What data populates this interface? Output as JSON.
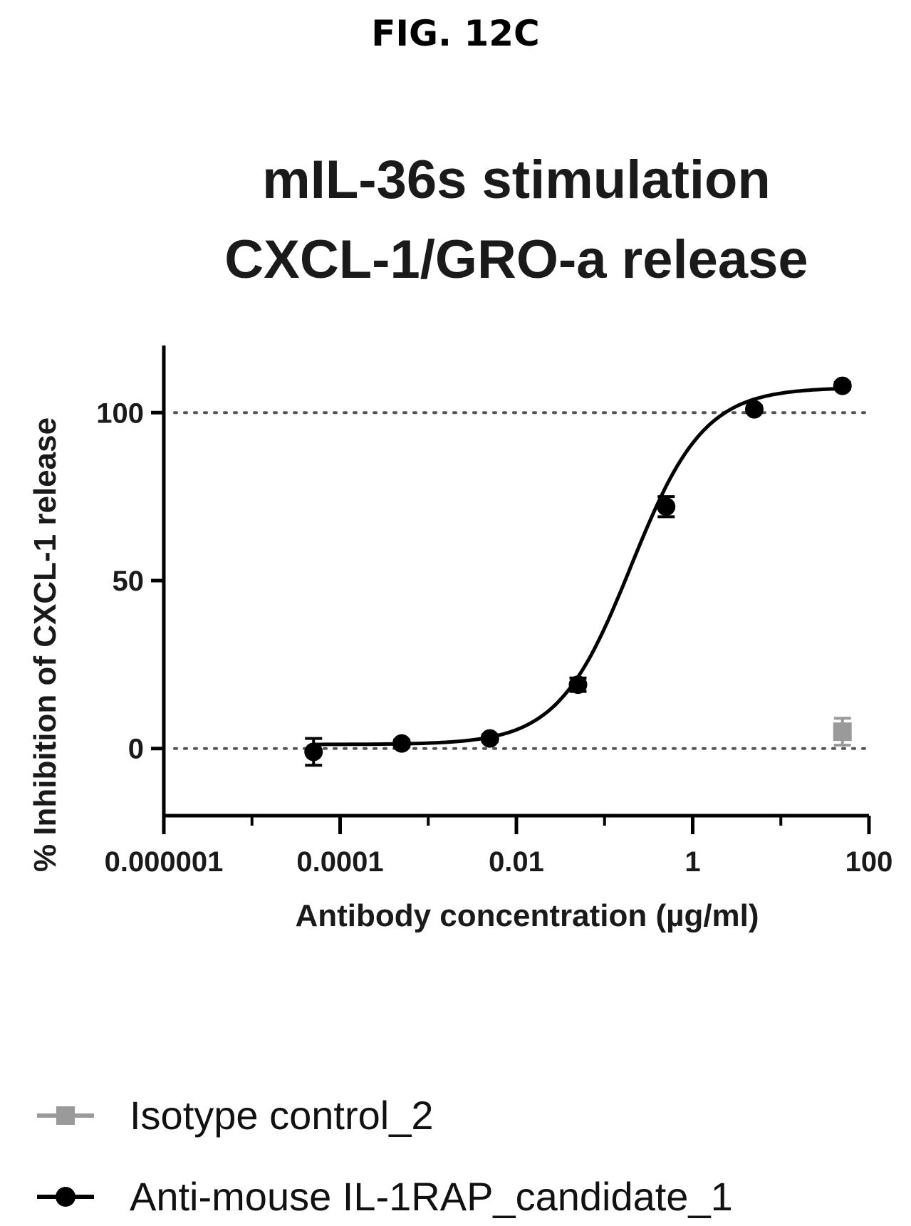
{
  "figure_label": "FIG. 12C",
  "chart_data": {
    "type": "scatter",
    "title": [
      "mIL-36s stimulation",
      "CXCL-1/GRO-a release"
    ],
    "xlabel": "Antibody concentration (µg/ml)",
    "ylabel": "% Inhibition of CXCL-1 release",
    "x_scale": "log",
    "xlim": [
      1e-06,
      100
    ],
    "ylim": [
      -20,
      120
    ],
    "x_ticks": [
      1e-06,
      0.0001,
      0.01,
      1,
      100
    ],
    "x_tick_labels": [
      "0.000001",
      "0.0001",
      "0.01",
      "1",
      "100"
    ],
    "y_ticks": [
      0,
      50,
      100
    ],
    "y_tick_labels": [
      "0",
      "50",
      "100"
    ],
    "reference_lines": [
      0,
      100
    ],
    "legend_position": "bottom",
    "series": [
      {
        "name": "Isotype control_2",
        "marker": "square",
        "color": "#9a9a9a",
        "fit": false,
        "points": [
          {
            "x": 50,
            "y": 5,
            "err": 4
          }
        ]
      },
      {
        "name": "Anti-mouse IL-1RAP_candidate_1",
        "marker": "circle",
        "color": "#000000",
        "fit": true,
        "points": [
          {
            "x": 5e-05,
            "y": -1,
            "err": 4
          },
          {
            "x": 0.0005,
            "y": 1.5,
            "err": 1
          },
          {
            "x": 0.005,
            "y": 3,
            "err": 1
          },
          {
            "x": 0.05,
            "y": 19,
            "err": 2
          },
          {
            "x": 0.5,
            "y": 72,
            "err": 3
          },
          {
            "x": 5,
            "y": 101,
            "err": 1
          },
          {
            "x": 50,
            "y": 108,
            "err": 1
          }
        ]
      }
    ]
  }
}
